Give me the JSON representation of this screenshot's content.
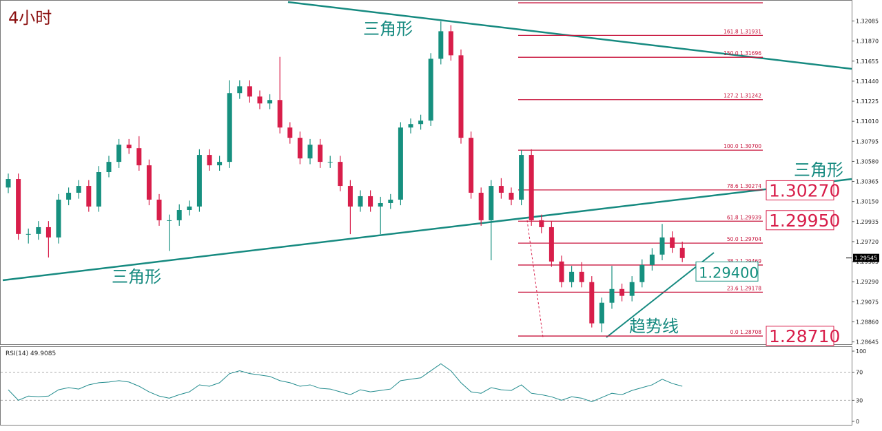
{
  "chart_data": [
    {
      "type": "candlestick",
      "title": "4小时",
      "up_color": "#16907f",
      "down_color": "#d81e4a",
      "fib_color": "#c8143c",
      "open": [
        1.303,
        1.30391,
        1.29802,
        1.29802,
        1.29875,
        1.29765,
        1.3017,
        1.30244,
        1.30317,
        1.30096,
        1.30465,
        1.30575,
        1.30759,
        1.30722,
        1.30538,
        1.3017,
        1.29949,
        1.29949,
        1.30059,
        1.30096,
        1.30649,
        1.30538,
        1.30575,
        1.31312,
        1.31385,
        1.31275,
        1.31201,
        1.31238,
        1.30943,
        1.30833,
        1.30612,
        1.30759,
        1.30575,
        1.30575,
        1.30317,
        1.30096,
        1.30207,
        1.30096,
        1.30133,
        1.3017,
        1.30943,
        1.3098,
        1.31017,
        1.3168,
        1.31975,
        1.31717,
        1.30833,
        1.30244,
        1.29949,
        1.30317,
        1.30244,
        1.3017,
        1.30649,
        1.29949,
        1.29875,
        1.29507,
        1.29286,
        1.29396,
        1.29286,
        1.28844,
        1.29065,
        1.29212,
        1.29139,
        1.29286,
        1.2947,
        1.29581,
        1.29765,
        1.29654
      ],
      "high": [
        1.3045,
        1.3045,
        1.2986,
        1.2994,
        1.2994,
        1.3023,
        1.303,
        1.3038,
        1.3038,
        1.3053,
        1.3064,
        1.3082,
        1.3082,
        1.3085,
        1.306,
        1.3023,
        1.3001,
        1.3012,
        1.3016,
        1.3071,
        1.3071,
        1.3064,
        1.3145,
        1.3145,
        1.3145,
        1.3134,
        1.313,
        1.317,
        1.31,
        1.309,
        1.3082,
        1.3082,
        1.3064,
        1.3064,
        1.3038,
        1.3027,
        1.3027,
        1.302,
        1.3023,
        1.31,
        1.3104,
        1.3108,
        1.3174,
        1.3208,
        1.3204,
        1.3178,
        1.309,
        1.303,
        1.3038,
        1.304,
        1.303,
        1.307,
        1.3071,
        1.3001,
        1.2994,
        1.2957,
        1.2946,
        1.295,
        1.2935,
        1.2912,
        1.2946,
        1.2927,
        1.2935,
        1.2953,
        1.2965,
        1.2991,
        1.2983,
        1.2972
      ],
      "low": [
        1.3024,
        1.2974,
        1.297,
        1.2974,
        1.2955,
        1.297,
        1.3011,
        1.3018,
        1.3004,
        1.3004,
        1.3041,
        1.3051,
        1.3066,
        1.3048,
        1.3011,
        1.2989,
        1.2962,
        1.2989,
        1.3,
        1.3004,
        1.3048,
        1.3048,
        1.3051,
        1.3125,
        1.3121,
        1.3114,
        1.3114,
        1.3088,
        1.3077,
        1.3055,
        1.3055,
        1.3051,
        1.3051,
        1.3026,
        1.298,
        1.3004,
        1.3004,
        1.298,
        1.3007,
        1.3011,
        1.3088,
        1.3092,
        1.3096,
        1.3162,
        1.3166,
        1.3077,
        1.3018,
        1.2989,
        1.2952,
        1.3018,
        1.3011,
        1.3011,
        1.2989,
        1.2981,
        1.2945,
        1.2923,
        1.2923,
        1.2923,
        1.288,
        1.2875,
        1.29,
        1.2908,
        1.2908,
        1.2923,
        1.2941,
        1.2952,
        1.296,
        1.295
      ],
      "close": [
        1.30391,
        1.29802,
        1.29802,
        1.29875,
        1.29765,
        1.3017,
        1.30244,
        1.30317,
        1.30096,
        1.30465,
        1.30575,
        1.30759,
        1.30722,
        1.30538,
        1.3017,
        1.29949,
        1.29949,
        1.30059,
        1.30096,
        1.30649,
        1.30538,
        1.30575,
        1.31312,
        1.31385,
        1.31275,
        1.31201,
        1.31238,
        1.30943,
        1.30833,
        1.30612,
        1.30759,
        1.30575,
        1.30575,
        1.30317,
        1.30096,
        1.30207,
        1.30096,
        1.30133,
        1.3017,
        1.30943,
        1.3098,
        1.31017,
        1.3168,
        1.31975,
        1.31717,
        1.30833,
        1.30244,
        1.29949,
        1.30317,
        1.30244,
        1.3017,
        1.30649,
        1.29949,
        1.29875,
        1.29507,
        1.29286,
        1.29396,
        1.29286,
        1.28844,
        1.29065,
        1.29212,
        1.29139,
        1.29286,
        1.2947,
        1.29581,
        1.29765,
        1.29654,
        1.29544
      ],
      "ylim": [
        1.2862,
        1.3231
      ],
      "yticks": [
        1.32085,
        {
          "value": 1.3187,
          "label": "1.31870"
        },
        1.31655,
        {
          "value": 1.3144,
          "label": "1.31440"
        },
        1.31225,
        {
          "value": 1.3101,
          "label": "1.31010"
        },
        1.30795,
        {
          "value": 1.3058,
          "label": "1.30580"
        },
        1.30365,
        {
          "value": 1.3015,
          "label": "1.30150"
        },
        1.29935,
        {
          "value": 1.2972,
          "label": "1.29720"
        },
        1.29505,
        {
          "value": 1.2929,
          "label": "1.29290"
        },
        1.29075,
        {
          "value": 1.2886,
          "label": "1.28860"
        },
        1.28645
      ],
      "current_price": 1.29545,
      "fib_levels": [
        {
          "value": 1.3228
        },
        {
          "value": 1.31931,
          "label": "161.8  1.31931"
        },
        {
          "value": 1.31696,
          "label": "150.0  1.31696"
        },
        {
          "value": 1.31242,
          "label": "127.2  1.31242"
        },
        {
          "value": 1.307,
          "label": "100.0  1.30700"
        },
        {
          "value": 1.30274,
          "label": "78.6  1.30274"
        },
        {
          "value": 1.29939,
          "label": "61.8  1.29939"
        },
        {
          "value": 1.29704,
          "label": "50.0  1.29704"
        },
        {
          "value": 1.29469,
          "label": "38.2  1.29469"
        },
        {
          "value": 1.29178,
          "label": "23.6  1.29178"
        },
        {
          "value": 1.28708,
          "label": "0.0  1.28708"
        }
      ],
      "price_boxes": [
        {
          "value": 1.3027,
          "label": "1.30270"
        },
        {
          "value": 1.2995,
          "label": "1.29950"
        },
        {
          "value": 1.2871,
          "label": "1.28710"
        },
        {
          "value": 1.294,
          "label": "1.29400"
        }
      ],
      "annotations": [
        "三角形",
        "三角形",
        "三角形",
        "趋势线"
      ]
    },
    {
      "type": "line",
      "title": "RSI(14) 49.9085",
      "color": "#1f8a8c",
      "values": [
        45,
        30,
        36,
        35,
        36,
        45,
        48,
        46,
        52,
        55,
        56,
        58,
        56,
        50,
        42,
        36,
        33,
        38,
        42,
        52,
        50,
        55,
        68,
        72,
        68,
        66,
        64,
        58,
        55,
        50,
        52,
        47,
        46,
        42,
        38,
        45,
        42,
        44,
        46,
        58,
        60,
        62,
        72,
        82,
        72,
        55,
        42,
        40,
        48,
        45,
        44,
        52,
        40,
        38,
        35,
        30,
        35,
        33,
        28,
        34,
        40,
        38,
        44,
        48,
        52,
        60,
        54,
        50
      ],
      "ylim": [
        0,
        100
      ],
      "yticks": [
        100,
        70,
        30,
        0
      ]
    }
  ]
}
